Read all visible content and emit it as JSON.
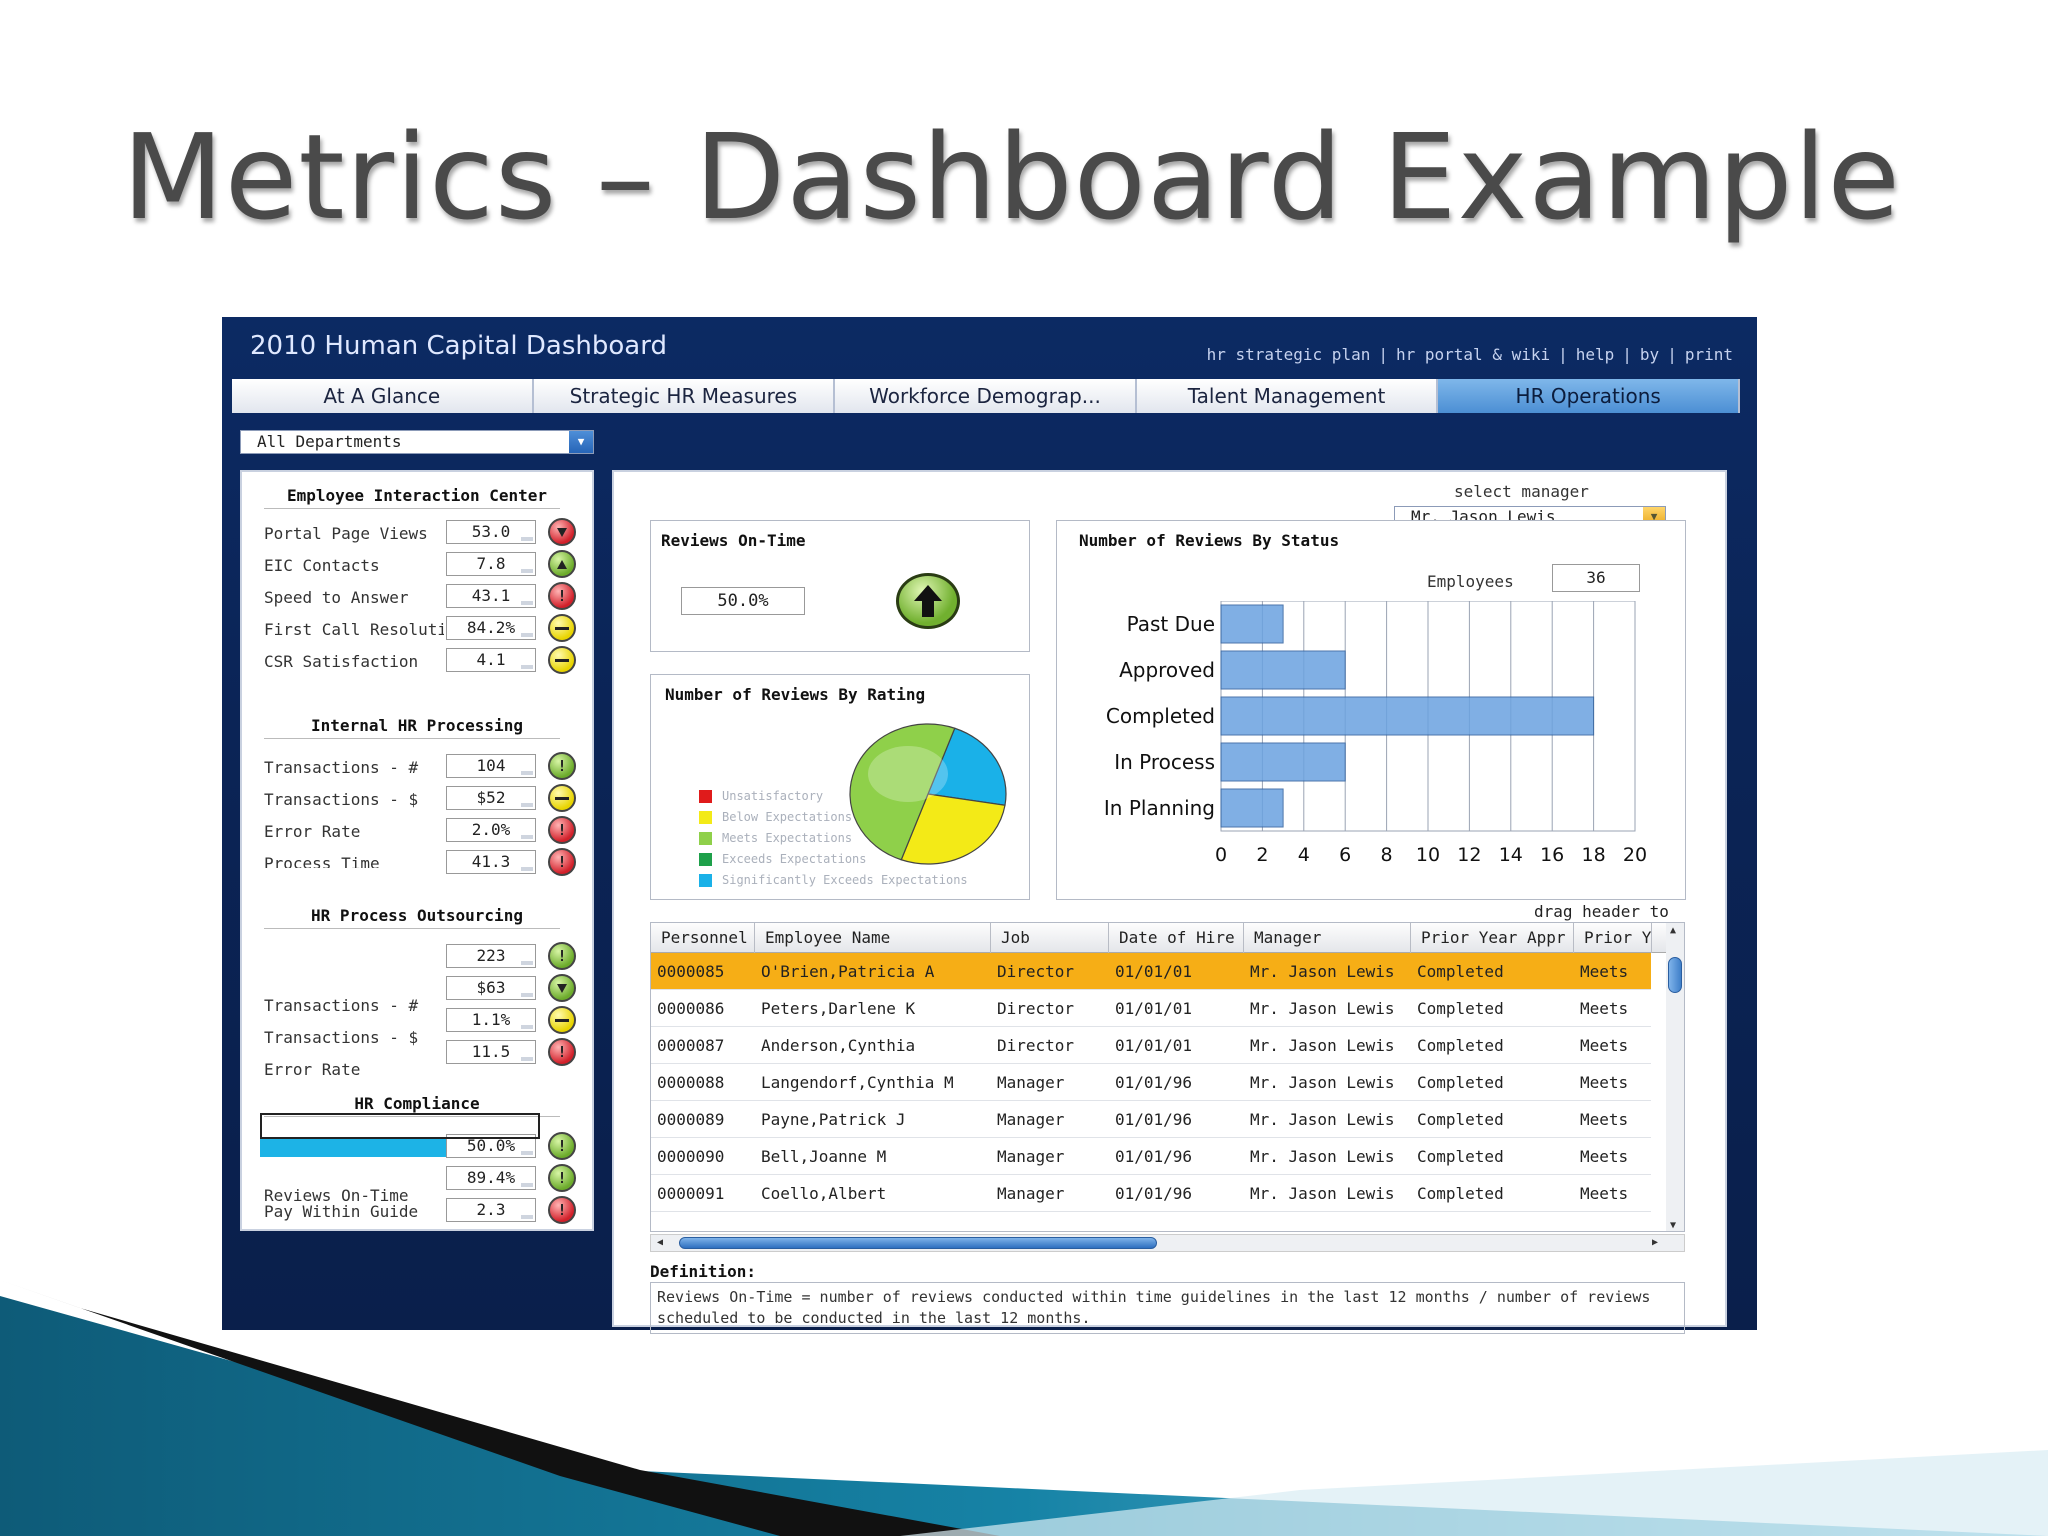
{
  "slide": {
    "title": "Metrics – Dashboard Example"
  },
  "dashboard": {
    "title": "2010 Human Capital Dashboard",
    "links": [
      "hr strategic plan",
      "hr portal & wiki",
      "help",
      "by",
      "print"
    ],
    "tabs": [
      {
        "label": "At A Glance",
        "active": false
      },
      {
        "label": "Strategic HR Measures",
        "active": false
      },
      {
        "label": "Workforce Demograp...",
        "active": false
      },
      {
        "label": "Talent Management",
        "active": false
      },
      {
        "label": "HR Operations",
        "active": true
      }
    ],
    "department_select": "All Departments"
  },
  "left_panel": {
    "sections": [
      {
        "title": "Employee Interaction Center",
        "metrics": [
          {
            "label": "Portal Page Views",
            "value": "53.0",
            "status": "red-down"
          },
          {
            "label": "EIC Contacts",
            "value": "7.8",
            "status": "green-up"
          },
          {
            "label": "Speed to Answer",
            "value": "43.1",
            "status": "red-info"
          },
          {
            "label": "First Call Resolutio",
            "value": "84.2%",
            "status": "yellow"
          },
          {
            "label": "CSR Satisfaction",
            "value": "4.1",
            "status": "yellow"
          }
        ]
      },
      {
        "title": "Internal HR Processing",
        "metrics": [
          {
            "label": "Transactions - #",
            "value": "104",
            "status": "green-info"
          },
          {
            "label": "Transactions - $",
            "value": "$52",
            "status": "yellow"
          },
          {
            "label": "Error Rate",
            "value": "2.0%",
            "status": "red-info"
          },
          {
            "label": "Process Time",
            "value": "41.3",
            "status": "red-info"
          }
        ]
      },
      {
        "title": "HR Process Outsourcing",
        "metrics": [
          {
            "label": "",
            "value": "223",
            "status": "green-info"
          },
          {
            "label": "Transactions - #",
            "value": "$63",
            "status": "green-down"
          },
          {
            "label": "Transactions - $",
            "value": "1.1%",
            "status": "yellow"
          },
          {
            "label": "Error Rate",
            "value": "11.5",
            "status": "red-info"
          }
        ]
      },
      {
        "title": "HR Compliance",
        "metrics": [
          {
            "label": "",
            "value": "50.0%",
            "status": "green-info"
          },
          {
            "label": "Reviews On-Time",
            "value": "89.4%",
            "status": "green-info"
          },
          {
            "label": "Pay Within Guide",
            "value": "2.3",
            "status": "red-info"
          }
        ]
      }
    ]
  },
  "reviews_on_time": {
    "title": "Reviews On-Time",
    "value": "50.0%",
    "status": "green-up"
  },
  "reviews_by_rating": {
    "title": "Number of Reviews By Rating",
    "legend": [
      {
        "label": "Unsatisfactory",
        "color": "#e01b1b"
      },
      {
        "label": "Below Expectations",
        "color": "#f3ea17"
      },
      {
        "label": "Meets Expectations",
        "color": "#8fd04a"
      },
      {
        "label": "Exceeds Expectations",
        "color": "#1ea04a"
      },
      {
        "label": "Significantly Exceeds Expectations",
        "color": "#1ab1e8"
      }
    ]
  },
  "manager_select": {
    "label": "select manager",
    "value": "Mr. Jason Lewis"
  },
  "employees": {
    "label": "Employees",
    "value": "36"
  },
  "chart_data": [
    {
      "type": "bar",
      "orientation": "horizontal",
      "title": "Number of Reviews By Status",
      "categories": [
        "Past Due",
        "Approved",
        "Completed",
        "In Process",
        "In Planning"
      ],
      "values": [
        3,
        6,
        18,
        6,
        3
      ],
      "xlim": [
        0,
        20
      ],
      "xticks": [
        0,
        2,
        4,
        6,
        8,
        10,
        12,
        14,
        16,
        18,
        20
      ],
      "grid": true,
      "bar_color": "#6aa2e0"
    },
    {
      "type": "pie",
      "title": "Number of Reviews By Rating",
      "labels": [
        "Significantly Exceeds Expectations",
        "Below Expectations",
        "Meets Expectations"
      ],
      "values": [
        22,
        28,
        50
      ],
      "colors": [
        "#1ab1e8",
        "#f3ea17",
        "#8fd04a"
      ]
    }
  ],
  "grid": {
    "drag_hint": "drag header to",
    "columns": [
      "Personnel",
      "Employee Name",
      "Job",
      "Date of Hire",
      "Manager",
      "Prior Year Appr",
      "Prior Y"
    ],
    "rows": [
      [
        "0000085",
        "O'Brien,Patricia A",
        "Director",
        "01/01/01",
        "Mr. Jason Lewis",
        "Completed",
        "Meets"
      ],
      [
        "0000086",
        "Peters,Darlene K",
        "Director",
        "01/01/01",
        "Mr. Jason Lewis",
        "Completed",
        "Meets"
      ],
      [
        "0000087",
        "Anderson,Cynthia",
        "Director",
        "01/01/01",
        "Mr. Jason Lewis",
        "Completed",
        "Meets"
      ],
      [
        "0000088",
        "Langendorf,Cynthia M",
        "Manager",
        "01/01/96",
        "Mr. Jason Lewis",
        "Completed",
        "Meets"
      ],
      [
        "0000089",
        "Payne,Patrick J",
        "Manager",
        "01/01/96",
        "Mr. Jason Lewis",
        "Completed",
        "Meets"
      ],
      [
        "0000090",
        "Bell,Joanne M",
        "Manager",
        "01/01/96",
        "Mr. Jason Lewis",
        "Completed",
        "Meets"
      ],
      [
        "0000091",
        "Coello,Albert",
        "Manager",
        "01/01/96",
        "Mr. Jason Lewis",
        "Completed",
        "Meets"
      ]
    ],
    "selected_row": 0,
    "selected_color": "#f6ae16"
  },
  "definition": {
    "title": "Definition:",
    "text": "Reviews On-Time = number of reviews conducted within time guidelines in the last 12 months / number of reviews scheduled to be conducted in the last 12 months."
  }
}
